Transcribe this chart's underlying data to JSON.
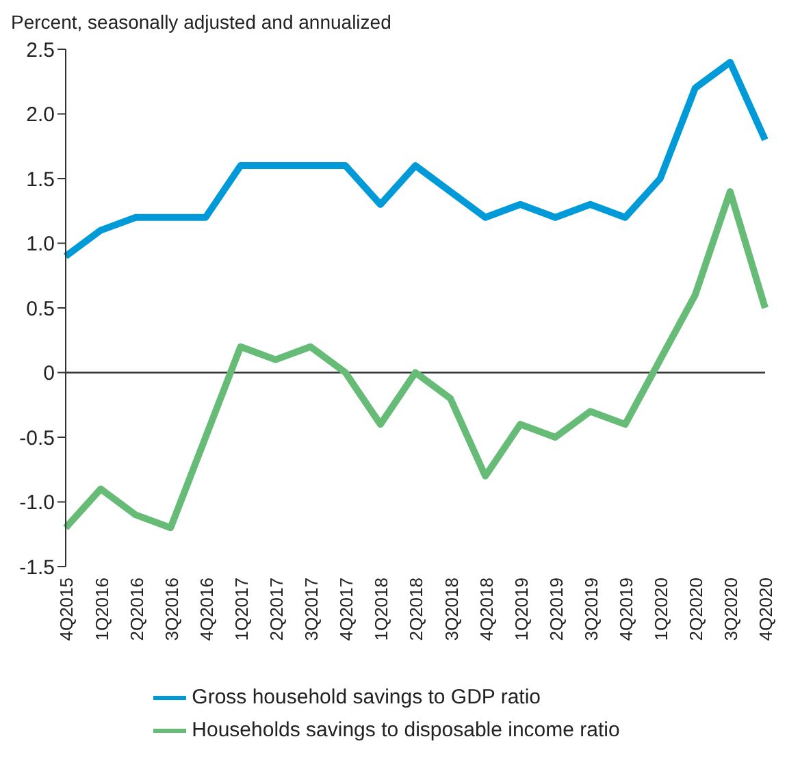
{
  "chart_data": {
    "type": "line",
    "ylabel": "Percent, seasonally adjusted and annualized",
    "categories": [
      "4Q2015",
      "1Q2016",
      "2Q2016",
      "3Q2016",
      "4Q2016",
      "1Q2017",
      "2Q2017",
      "3Q2017",
      "4Q2017",
      "1Q2018",
      "2Q2018",
      "3Q2018",
      "4Q2018",
      "1Q2019",
      "2Q2019",
      "3Q2019",
      "4Q2019",
      "1Q2020",
      "2Q2020",
      "3Q2020",
      "4Q2020"
    ],
    "series": [
      {
        "name": "Gross household savings to GDP ratio",
        "color": "#009ad8",
        "values": [
          0.9,
          1.1,
          1.2,
          1.2,
          1.2,
          1.6,
          1.6,
          1.6,
          1.6,
          1.3,
          1.6,
          1.4,
          1.2,
          1.3,
          1.2,
          1.3,
          1.2,
          1.5,
          2.2,
          2.4,
          1.8
        ]
      },
      {
        "name": "Households savings to disposable income ratio",
        "color": "#66bb77",
        "values": [
          -1.2,
          -0.9,
          -1.1,
          -1.2,
          -0.5,
          0.2,
          0.1,
          0.2,
          0.0,
          -0.4,
          0.0,
          -0.2,
          -0.8,
          -0.4,
          -0.5,
          -0.3,
          -0.4,
          0.1,
          0.6,
          1.4,
          0.5
        ]
      }
    ],
    "ylim": [
      -1.5,
      2.5
    ],
    "yticks": [
      -1.5,
      {
        "value": -1,
        "label": "-1.0"
      },
      -0.5,
      0,
      0.5,
      {
        "value": 1,
        "label": "1.0"
      },
      1.5,
      {
        "value": 2,
        "label": "2.0"
      },
      2.5
    ],
    "ref_lines": [
      {
        "axis": "y",
        "value": 0,
        "color": "#333333"
      }
    ],
    "grid": false,
    "legend": "bottom",
    "marker": "none",
    "line_style": "solid"
  }
}
